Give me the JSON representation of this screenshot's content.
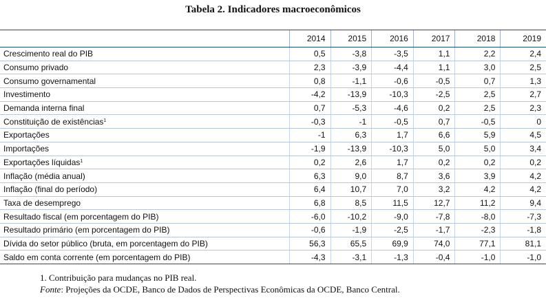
{
  "title": "Tabela 2. Indicadores macroeconômicos",
  "columns": [
    "2014",
    "2015",
    "2016",
    "2017",
    "2018",
    "2019"
  ],
  "rows": [
    {
      "label": "Crescimento real do PIB",
      "sup": "",
      "values": [
        "0,5",
        "-3,8",
        "-3,5",
        "1,1",
        "2,2",
        "2,4"
      ]
    },
    {
      "label": "Consumo privado",
      "sup": "",
      "values": [
        "2,3",
        "-3,9",
        "-4,4",
        "1,1",
        "3,0",
        "2,5"
      ]
    },
    {
      "label": "Consumo governamental",
      "sup": "",
      "values": [
        "0,8",
        "-1,1",
        "-0,6",
        "-0,5",
        "0,7",
        "1,3"
      ]
    },
    {
      "label": "Investimento",
      "sup": "",
      "values": [
        "-4,2",
        "-13,9",
        "-10,3",
        "-2,5",
        "2,5",
        "2,7"
      ]
    },
    {
      "label": "Demanda interna final",
      "sup": "",
      "values": [
        "0,7",
        "-5,3",
        "-4,6",
        "0,2",
        "2,5",
        "2,3"
      ]
    },
    {
      "label": "Constituição de existências",
      "sup": "1",
      "values": [
        "-0,3",
        "-1",
        "-0,5",
        "0,7",
        "-0,5",
        "0"
      ]
    },
    {
      "label": "Exportações",
      "sup": "",
      "values": [
        "-1",
        "6,3",
        "1,7",
        "6,6",
        "5,9",
        "4,5"
      ]
    },
    {
      "label": "Importações",
      "sup": "",
      "values": [
        "-1,9",
        "-13,9",
        "-10,3",
        "5,0",
        "5,0",
        "3,4"
      ]
    },
    {
      "label": "Exportações líquidas",
      "sup": "1",
      "values": [
        "0,2",
        "2,6",
        "1,7",
        "0,2",
        "0,2",
        "0,2"
      ]
    },
    {
      "label": "Inflação (média anual)",
      "sup": "",
      "values": [
        "6,3",
        "9,0",
        "8,7",
        "3,6",
        "3,9",
        "4,2"
      ]
    },
    {
      "label": "Inflação (final do período)",
      "sup": "",
      "values": [
        "6,4",
        "10,7",
        "7,0",
        "3,2",
        "4,2",
        "4,2"
      ]
    },
    {
      "label": "Taxa de desemprego",
      "sup": "",
      "values": [
        "6,8",
        "8,5",
        "11,5",
        "12,7",
        "11,2",
        "9,4"
      ]
    },
    {
      "label": "Resultado fiscal (em porcentagem do PIB)",
      "sup": "",
      "values": [
        "-6,0",
        "-10,2",
        "-9,0",
        "-7,8",
        "-8,0",
        "-7,3"
      ]
    },
    {
      "label": "Resultado primário (em porcentagem do PIB)",
      "sup": "",
      "values": [
        "-0,6",
        "-1,9",
        "-2,5",
        "-1,7",
        "-2,3",
        "-1,8"
      ]
    },
    {
      "label": "Dívida do setor público (bruta, em porcentagem do PIB)",
      "sup": "",
      "values": [
        "56,3",
        "65,5",
        "69,9",
        "74,0",
        "77,1",
        "81,1"
      ]
    },
    {
      "label": "Saldo em conta corrente (em porcentagem do PIB)",
      "sup": "",
      "values": [
        "-4,3",
        "-3,1",
        "-1,3",
        "-0,4",
        "-1,0",
        "-1,0"
      ]
    }
  ],
  "footnote": "1. Contribuição para mudanças no PIB real.",
  "source": {
    "label": "Fonte",
    "text": ": Projeções da OCDE, Banco de Dados de Perspectivas Econômicas da OCDE, Banco Central."
  }
}
